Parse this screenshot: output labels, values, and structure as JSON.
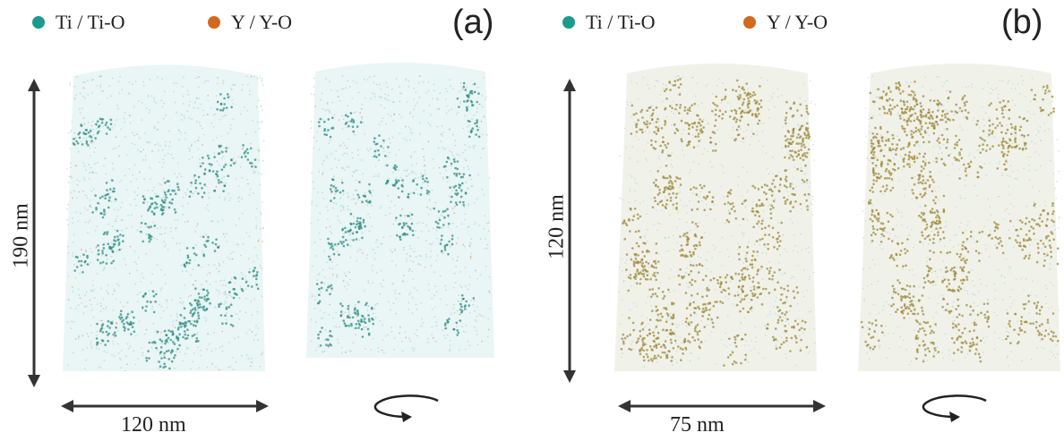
{
  "legend": {
    "ti_label": "Ti / Ti-O",
    "y_label": "Y / Y-O",
    "ti_color": "#1a9b8e",
    "y_color": "#d2691e"
  },
  "panel_a": {
    "letter": "(a)",
    "height_label": "190 nm",
    "width_label": "120 nm"
  },
  "panel_b": {
    "letter": "(b)",
    "height_label": "120 nm",
    "width_label": "75 nm"
  },
  "icons": {
    "rotate": "rotate-arrow-icon"
  }
}
